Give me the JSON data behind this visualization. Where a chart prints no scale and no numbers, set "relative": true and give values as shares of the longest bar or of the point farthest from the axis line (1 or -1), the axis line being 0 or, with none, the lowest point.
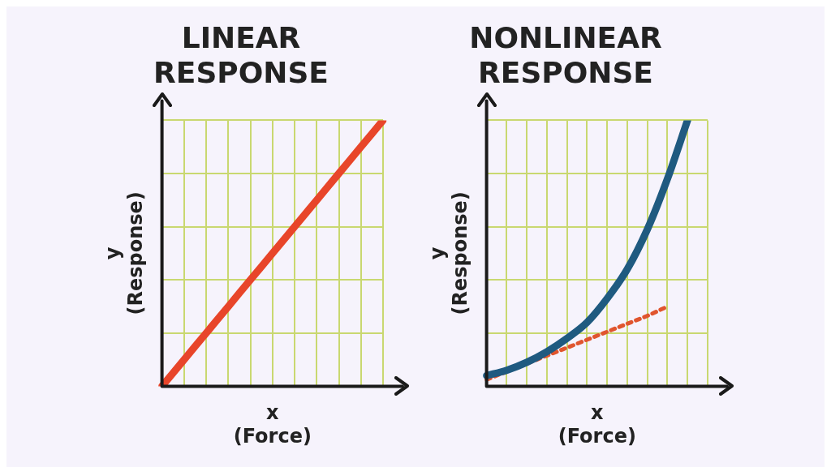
{
  "chart_data": [
    {
      "type": "line",
      "title": "LINEAR\nRESPONSE",
      "xlabel": "x\n(Force)",
      "ylabel": "y\n(Response)",
      "relative": true,
      "grid": true,
      "categories": [
        null,
        null,
        null,
        null,
        null,
        null,
        null,
        null,
        null,
        null,
        null
      ],
      "series": [
        {
          "color": "#e8452a",
          "values": [
            0,
            0.1,
            0.2,
            0.3,
            0.4,
            0.5,
            0.6,
            0.7,
            0.8,
            0.9,
            1
          ]
        }
      ]
    },
    {
      "type": "line",
      "title": "NONLINEAR\nRESPONSE",
      "xlabel": "x\n(Force)",
      "ylabel": "y\n(Response)",
      "relative": true,
      "grid": true,
      "categories": [
        null,
        null,
        null,
        null,
        null,
        null,
        null,
        null,
        null,
        null,
        null,
        null
      ],
      "series": [
        {
          "color": "#1f5a80",
          "values": [
            0.04,
            0.06,
            0.09,
            0.13,
            0.18,
            0.24,
            0.33,
            0.44,
            0.59,
            0.78,
            1,
            null
          ]
        },
        {
          "color": "#e0552e",
          "line_style": "dotted",
          "values": [
            0.025,
            0.055,
            0.085,
            0.115,
            0.145,
            0.175,
            0.205,
            0.235,
            0.265,
            0.3,
            null,
            null
          ]
        }
      ]
    }
  ]
}
